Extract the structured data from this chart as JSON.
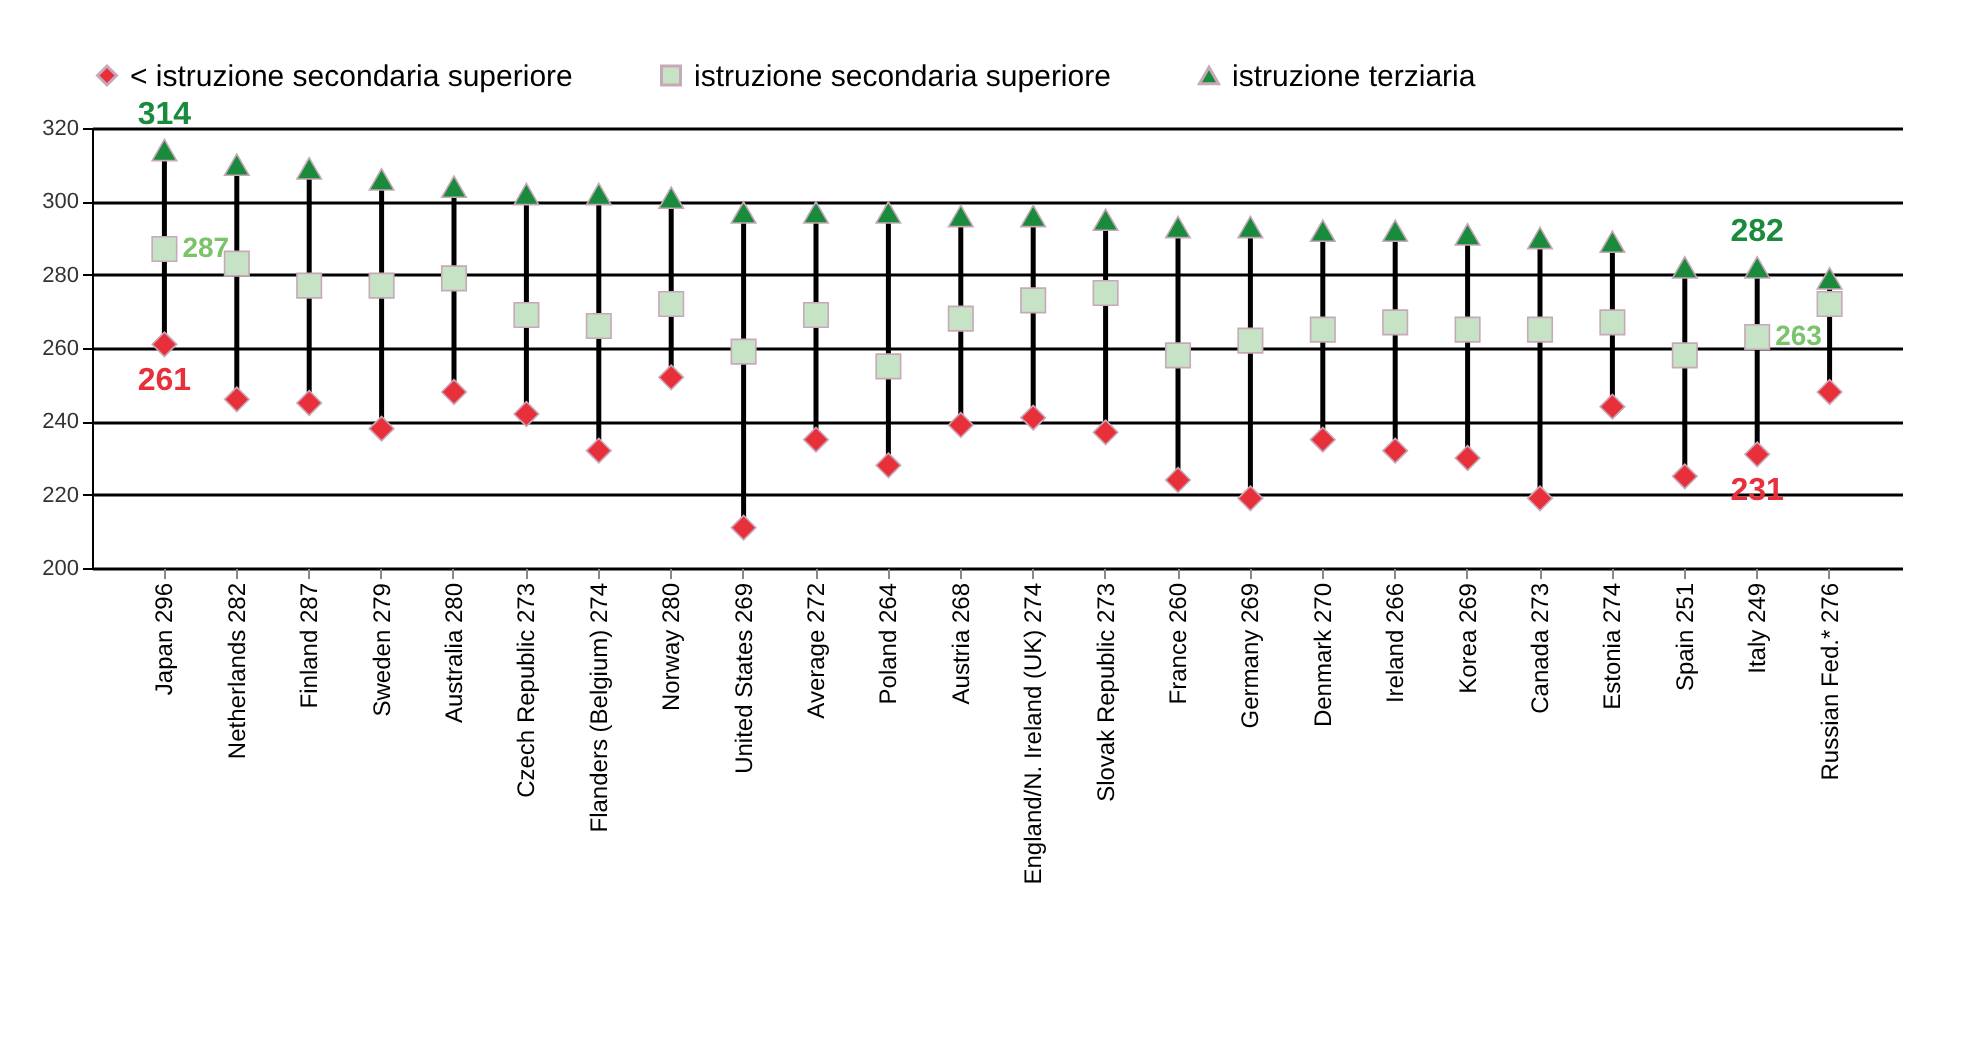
{
  "chart_data": {
    "type": "scatter",
    "categories": [
      "Japan 296",
      "Netherlands 282",
      "Finland 287",
      "Sweden 279",
      "Australia 280",
      "Czech Republic 273",
      "Flanders (Belgium) 274",
      "Norway 280",
      "United States 269",
      "Average 272",
      "Poland 264",
      "Austria 268",
      "England/N. Ireland (UK) 274",
      "Slovak Republic 273",
      "France 260",
      "Germany 269",
      "Denmark 270",
      "Ireland 266",
      "Korea 269",
      "Canada 273",
      "Estonia 274",
      "Spain 251",
      "Italy 249",
      "Russian Fed.* 276"
    ],
    "series": [
      {
        "name": "< istruzione secondaria superiore",
        "color": "#e8303a",
        "marker": "diamond",
        "values": [
          261,
          246,
          245,
          238,
          248,
          242,
          232,
          252,
          211,
          235,
          228,
          239,
          241,
          237,
          224,
          219,
          235,
          232,
          230,
          219,
          244,
          225,
          231,
          248
        ]
      },
      {
        "name": "istruzione secondaria superiore",
        "color": "#c6e3c6",
        "marker": "square",
        "values": [
          287,
          283,
          277,
          277,
          279,
          269,
          266,
          272,
          259,
          269,
          255,
          268,
          273,
          275,
          258,
          262,
          265,
          267,
          265,
          265,
          267,
          258,
          263,
          272
        ]
      },
      {
        "name": "istruzione terziaria",
        "color": "#1a8a3c",
        "marker": "triangle",
        "values": [
          314,
          310,
          309,
          306,
          304,
          302,
          302,
          301,
          297,
          297,
          297,
          296,
          296,
          295,
          293,
          293,
          292,
          292,
          291,
          290,
          289,
          282,
          282,
          279
        ]
      }
    ],
    "ylim": [
      200,
      320
    ],
    "yticks": [
      200,
      220,
      240,
      260,
      280,
      300,
      320
    ],
    "grid": "y",
    "legend": "top",
    "annotations": [
      {
        "text": "314",
        "x": "Japan 296",
        "y": 314
      },
      {
        "text": "287",
        "x": "Japan 296",
        "y": 287
      },
      {
        "text": "261",
        "x": "Japan 296",
        "y": 261
      },
      {
        "text": "282",
        "x": "Italy 249",
        "y": 282
      },
      {
        "text": "263",
        "x": "Italy 249",
        "y": 263
      },
      {
        "text": "231",
        "x": "Italy 249",
        "y": 231
      }
    ]
  }
}
